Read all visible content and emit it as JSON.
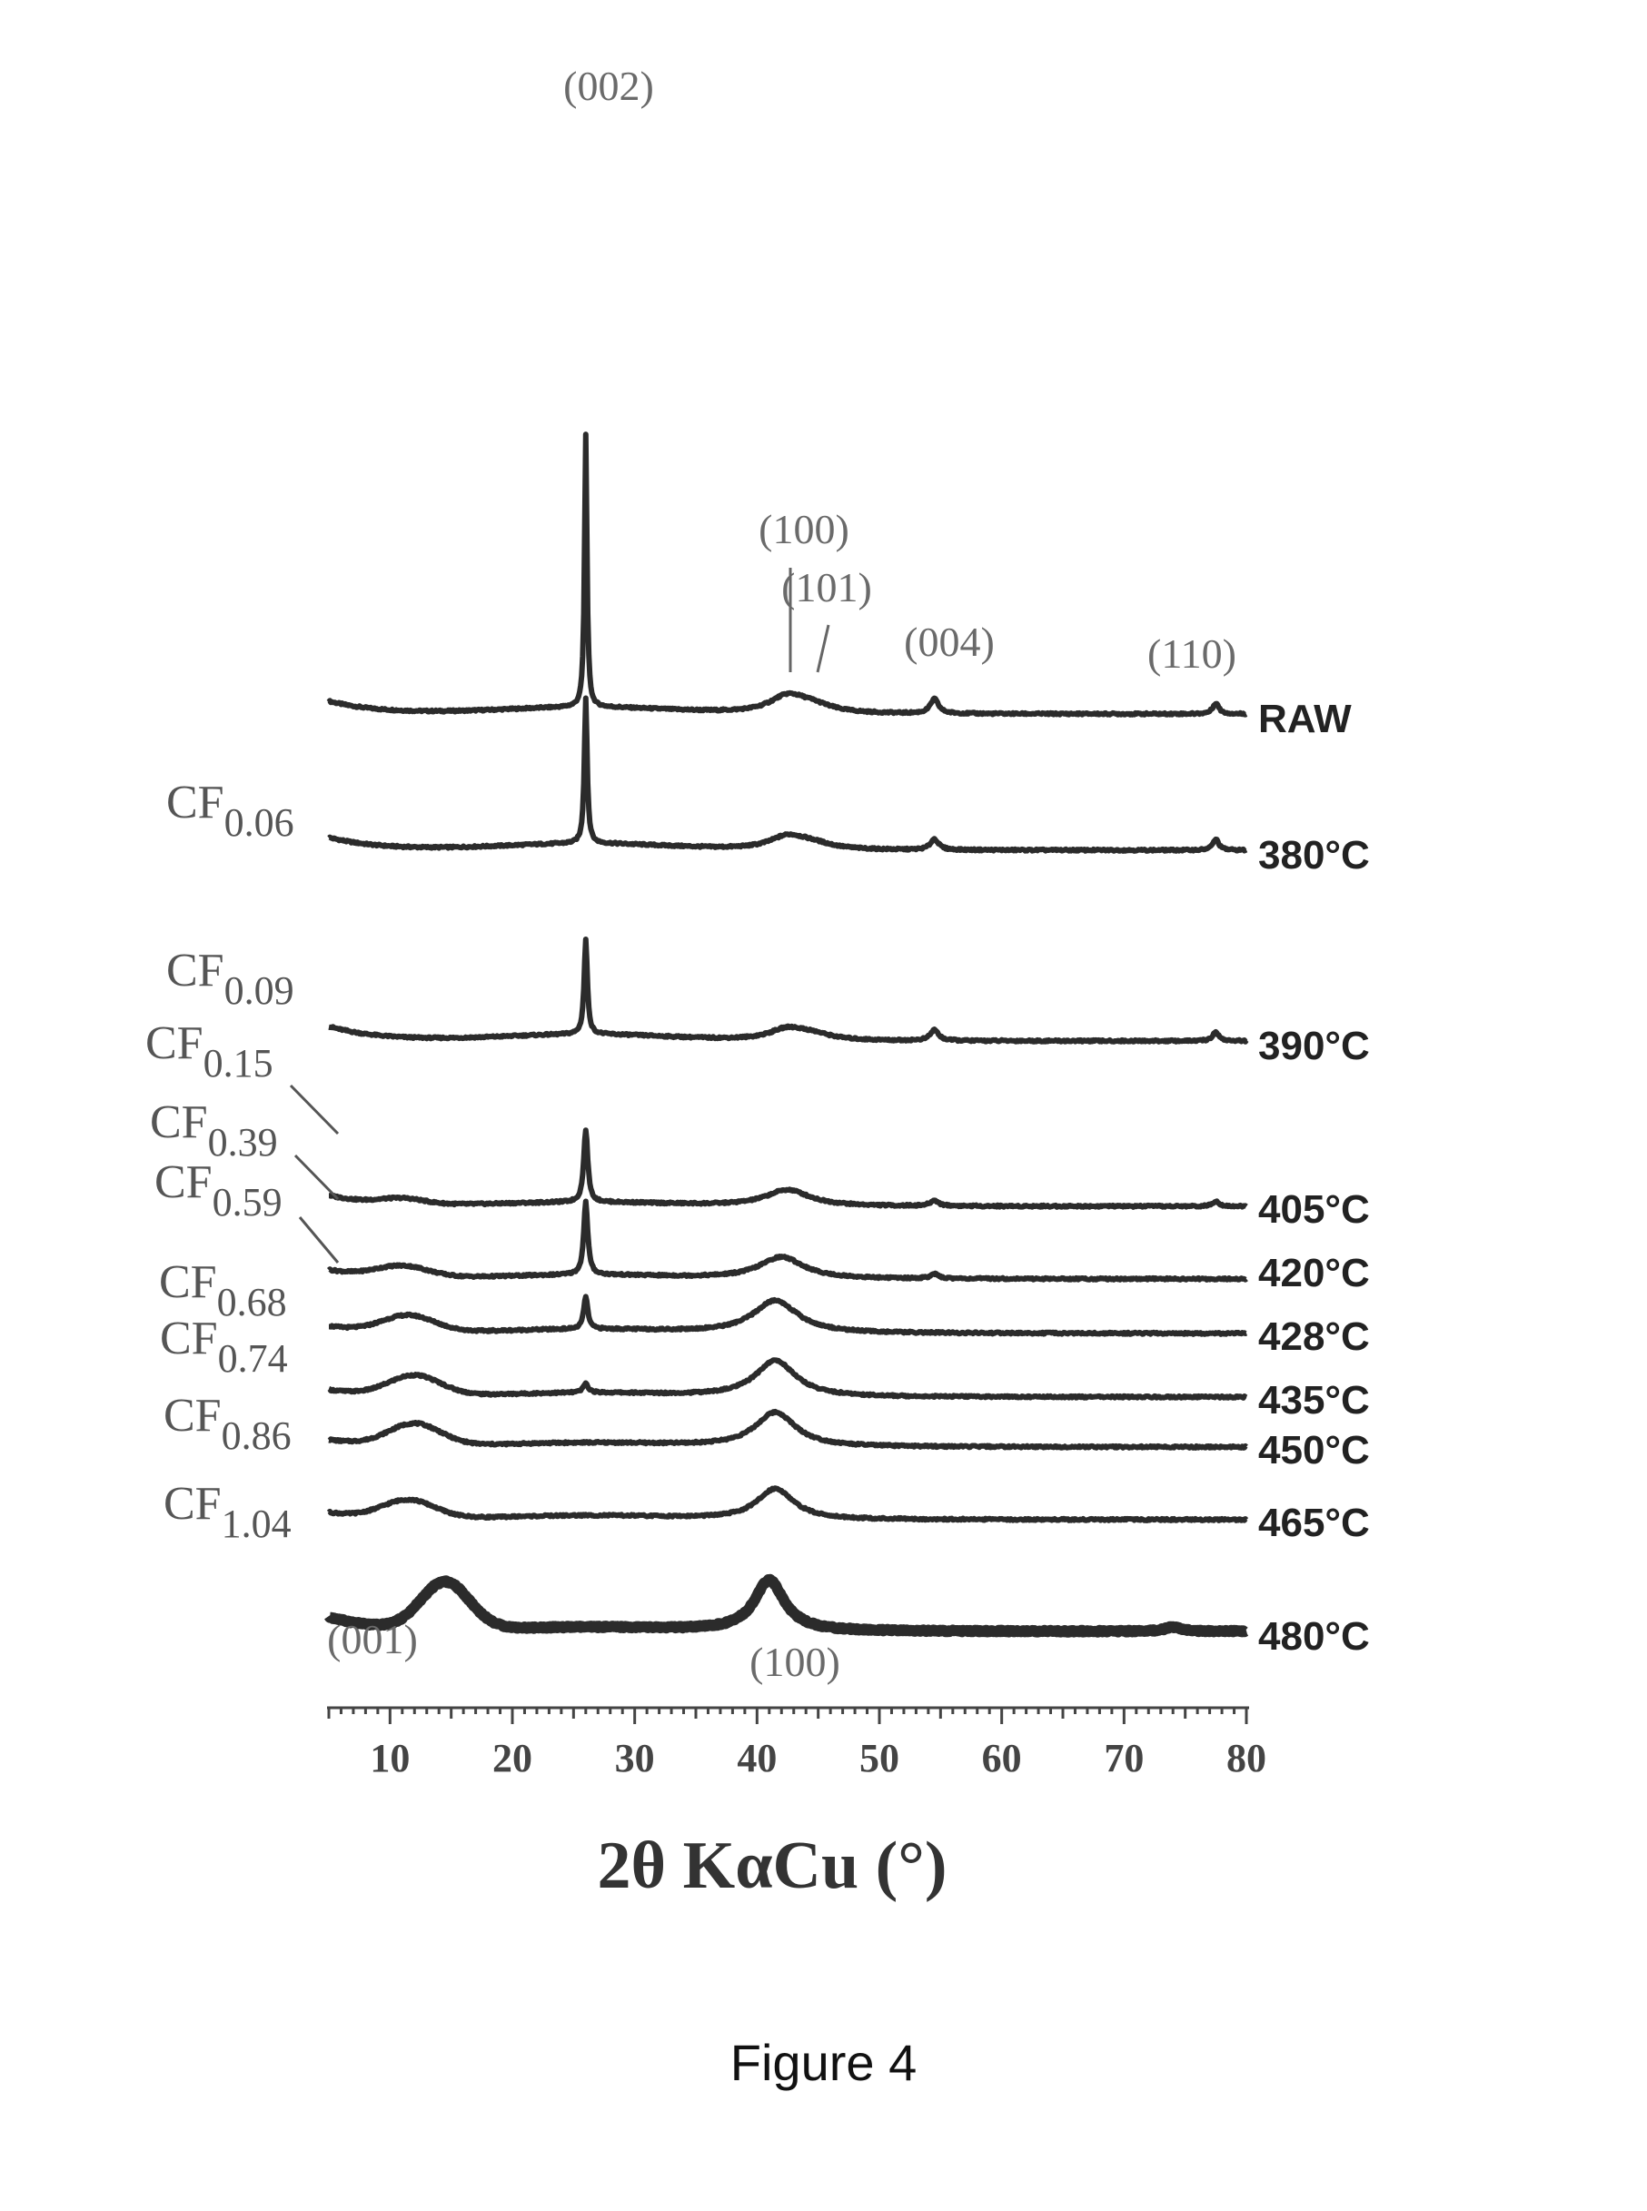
{
  "caption": "Figure 4",
  "chart_data": {
    "type": "line",
    "title": "",
    "xlabel": "2θ KαCu (°)",
    "ylabel": "",
    "xlim": [
      5,
      80
    ],
    "x_ticks": [
      "10",
      "20",
      "30",
      "40",
      "50",
      "60",
      "70",
      "80"
    ],
    "x_tick_values": [
      10,
      20,
      30,
      40,
      50,
      60,
      70,
      80
    ],
    "grid": false,
    "legend": "none",
    "peak_labels": [
      {
        "text": "(002)",
        "x": 26
      },
      {
        "text": "(100)",
        "x": 42
      },
      {
        "text": "(101)",
        "x": 44.5
      },
      {
        "text": "(004)",
        "x": 54.5
      },
      {
        "text": "(110)",
        "x": 77.5
      },
      {
        "text": "(001)",
        "x": 11
      },
      {
        "text": "(100)",
        "x": 41
      }
    ],
    "series": [
      {
        "name": "RAW",
        "temperature": "RAW",
        "composition": "",
        "base": 0.35,
        "tail": 0.1,
        "peaks": [
          [
            26,
            0.12,
            7.5
          ],
          [
            42.5,
            1.8,
            0.45
          ],
          [
            44.5,
            2.0,
            0.2
          ],
          [
            54.5,
            0.4,
            0.4
          ],
          [
            77.5,
            0.3,
            0.3
          ]
        ],
        "hump": [
          0,
          5,
          0
        ]
      },
      {
        "name": "380°C",
        "temperature": "380°C",
        "composition": "0.06",
        "base": 0.35,
        "tail": 0.1,
        "peaks": [
          [
            26,
            0.14,
            4.0
          ],
          [
            42.5,
            1.8,
            0.35
          ],
          [
            44.5,
            2.0,
            0.15
          ],
          [
            54.5,
            0.4,
            0.3
          ],
          [
            77.5,
            0.3,
            0.3
          ]
        ],
        "hump": [
          0,
          5,
          0
        ]
      },
      {
        "name": "390°C",
        "temperature": "390°C",
        "composition": "0.09",
        "base": 0.4,
        "tail": 0.1,
        "peaks": [
          [
            26,
            0.16,
            2.6
          ],
          [
            42.5,
            1.8,
            0.3
          ],
          [
            44.5,
            2.0,
            0.15
          ],
          [
            54.5,
            0.4,
            0.3
          ],
          [
            77.5,
            0.3,
            0.25
          ]
        ],
        "hump": [
          0,
          5,
          0
        ]
      },
      {
        "name": "405°C",
        "temperature": "405°C",
        "composition": "0.15",
        "base": 0.3,
        "tail": 0.05,
        "peaks": [
          [
            26,
            0.2,
            2.0
          ],
          [
            42.5,
            2.2,
            0.45
          ],
          [
            54.5,
            0.4,
            0.15
          ],
          [
            77.5,
            0.3,
            0.15
          ]
        ],
        "hump": [
          0.15,
          11,
          2.5
        ]
      },
      {
        "name": "420°C",
        "temperature": "420°C",
        "composition": "0.39",
        "base": 0.25,
        "tail": 0.05,
        "peaks": [
          [
            26,
            0.2,
            2.0
          ],
          [
            42,
            2.2,
            0.6
          ],
          [
            54.5,
            0.4,
            0.12
          ]
        ],
        "hump": [
          0.3,
          11,
          3
        ]
      },
      {
        "name": "428°C",
        "temperature": "428°C",
        "composition": "0.59",
        "base": 0.2,
        "tail": 0.05,
        "peaks": [
          [
            26,
            0.2,
            0.9
          ],
          [
            41.5,
            2.2,
            0.9
          ]
        ],
        "hump": [
          0.45,
          11.5,
          3
        ]
      },
      {
        "name": "435°C",
        "temperature": "435°C",
        "composition": "0.68",
        "base": 0.2,
        "tail": 0.05,
        "peaks": [
          [
            26,
            0.25,
            0.25
          ],
          [
            41.5,
            2.0,
            1.0
          ]
        ],
        "hump": [
          0.55,
          12,
          3
        ]
      },
      {
        "name": "450°C",
        "temperature": "450°C",
        "composition": "0.74",
        "base": 0.2,
        "tail": 0.05,
        "peaks": [
          [
            41.5,
            2.0,
            0.95
          ]
        ],
        "hump": [
          0.6,
          12,
          3
        ]
      },
      {
        "name": "465°C",
        "temperature": "465°C",
        "composition": "0.86",
        "base": 0.2,
        "tail": 0.05,
        "peaks": [
          [
            41.5,
            1.8,
            0.85
          ]
        ],
        "hump": [
          0.5,
          11.5,
          3
        ]
      },
      {
        "name": "480°C",
        "temperature": "480°C",
        "composition": "1.04",
        "base": 0.4,
        "tail": 0.1,
        "peaks": [
          [
            41,
            1.5,
            1.4
          ],
          [
            74,
            0.8,
            0.12
          ]
        ],
        "hump": [
          1.3,
          14.5,
          2.8
        ]
      }
    ]
  }
}
